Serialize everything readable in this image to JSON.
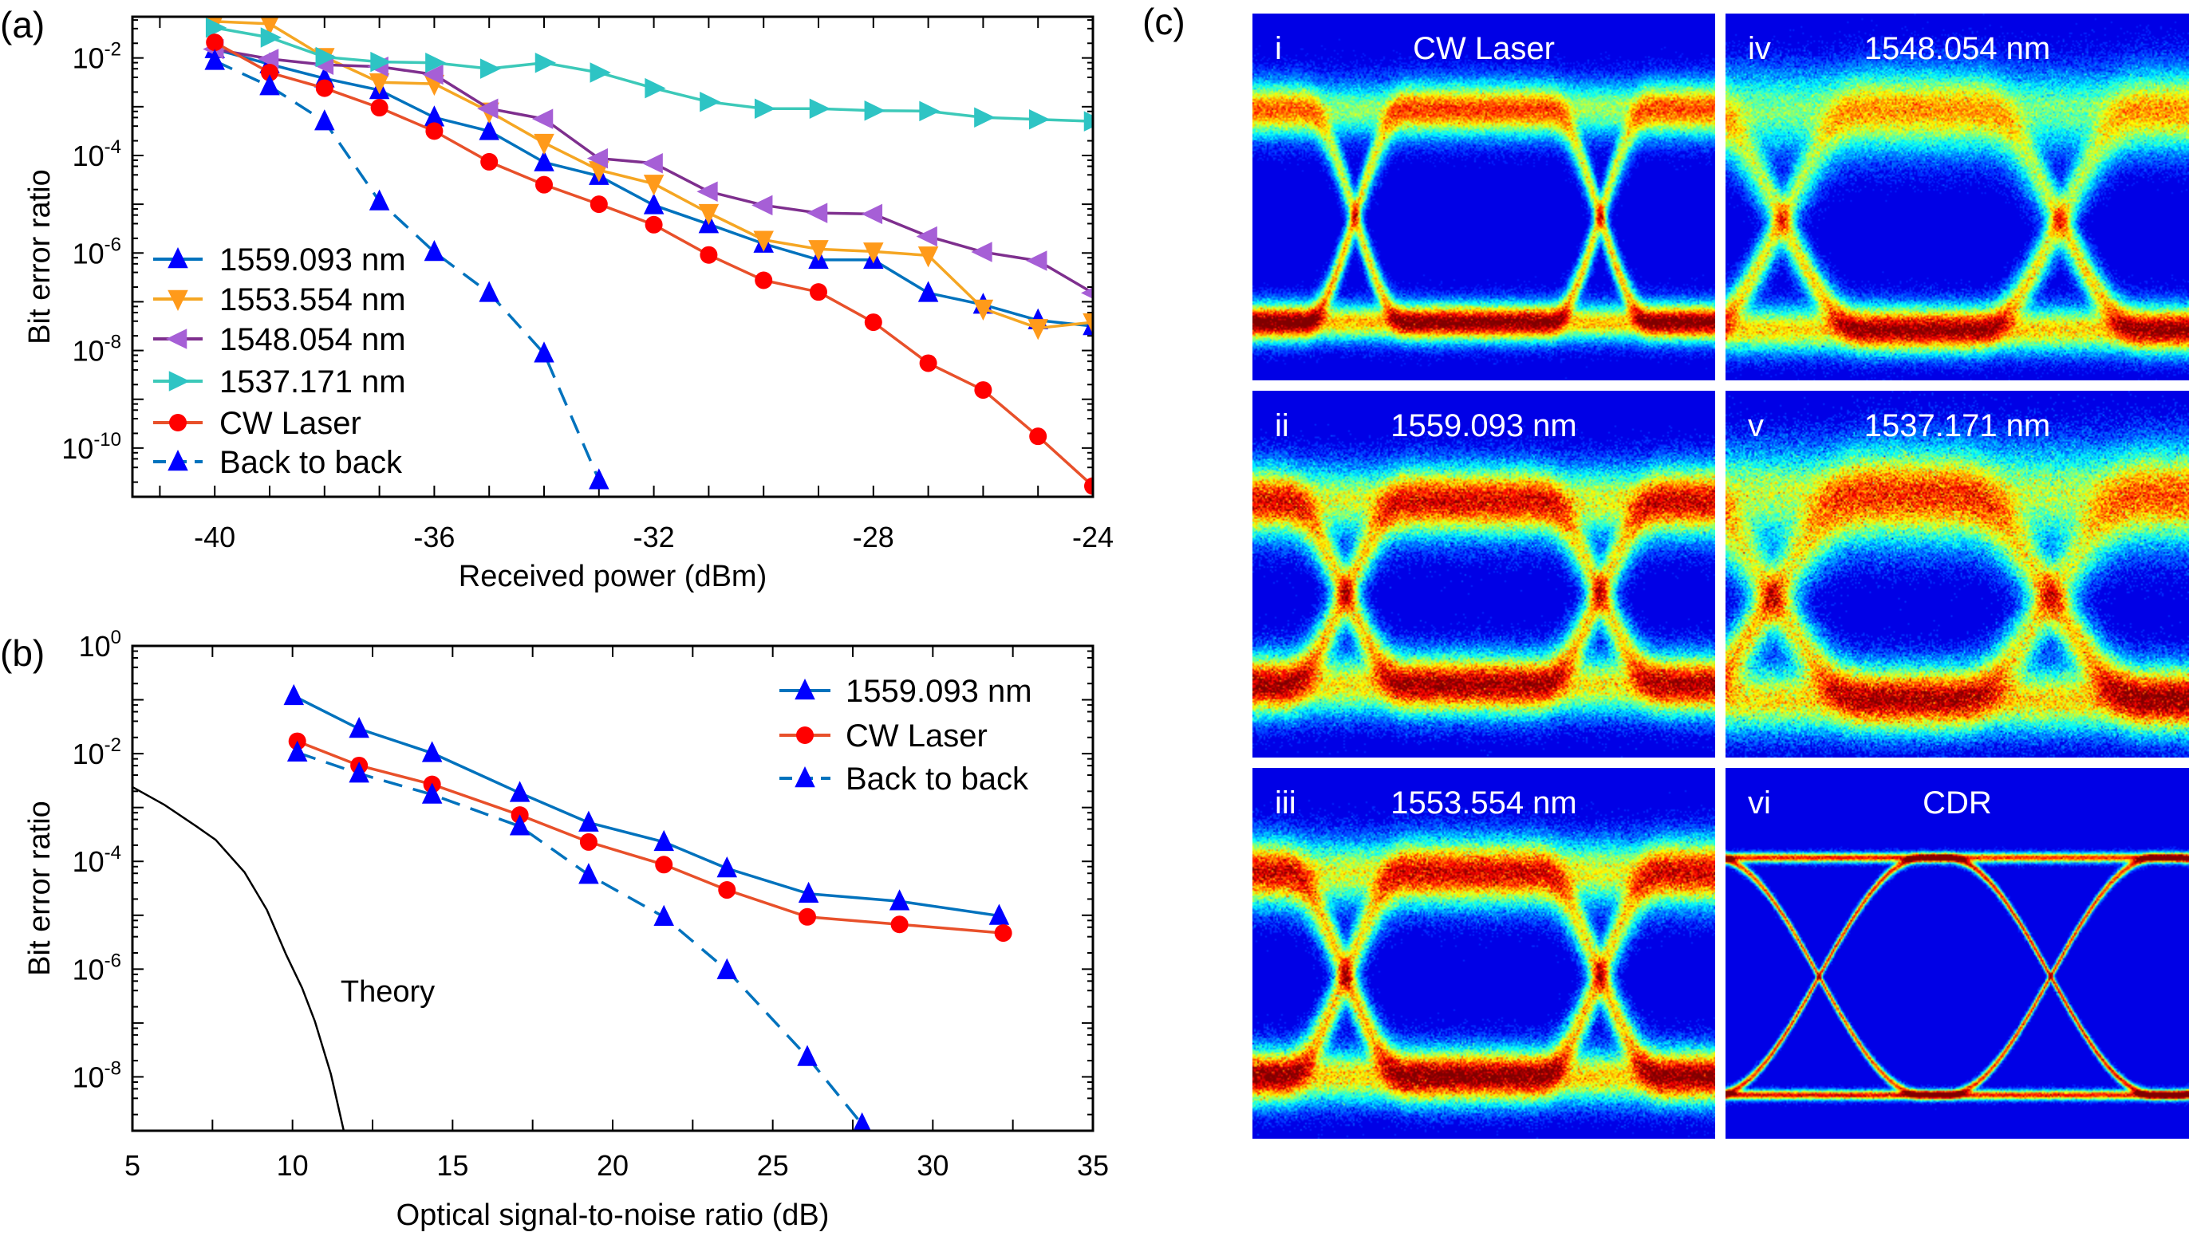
{
  "panel_labels": {
    "a": "(a)",
    "b": "(b)",
    "c": "(c)"
  },
  "chart_data": [
    {
      "id": "a",
      "type": "line",
      "xlabel": "Received power (dBm)",
      "ylabel": "Bit error ratio",
      "xscale": "linear",
      "yscale": "log",
      "xlim": [
        -41.5,
        -24
      ],
      "ylim": [
        1e-11,
        0.07
      ],
      "x_ticks": [
        -40,
        -36,
        -32,
        -28,
        -24
      ],
      "x_tick_labels": [
        "-40",
        "-36",
        "-32",
        "-28",
        "-24"
      ],
      "y_ticks": [
        0.01,
        0.0001,
        1e-06,
        1e-08,
        1e-10
      ],
      "y_tick_labels": [
        [
          "10",
          "-2"
        ],
        [
          "10",
          "-4"
        ],
        [
          "10",
          "-6"
        ],
        [
          "10",
          "-8"
        ],
        [
          "10",
          "-10"
        ]
      ],
      "grid": false,
      "legend_placement": "bottom-left",
      "series": [
        {
          "name": "1559.093 nm",
          "marker": "triangle-up",
          "line_color": "#0072bd",
          "marker_color": "#0000ff",
          "dash": false,
          "x": [
            -40,
            -39,
            -38,
            -37,
            -36,
            -35,
            -34,
            -33,
            -32,
            -31,
            -30,
            -29,
            -28,
            -27,
            -26,
            -25,
            -24
          ],
          "log10_y": [
            -1.82,
            -2.13,
            -2.42,
            -2.66,
            -3.22,
            -3.5,
            -4.14,
            -4.42,
            -5.02,
            -5.41,
            -5.81,
            -6.14,
            -6.14,
            -6.82,
            -7.06,
            -7.38,
            -7.5
          ]
        },
        {
          "name": "1553.554 nm",
          "marker": "triangle-down",
          "line_color": "#f5a623",
          "marker_color": "#ff9a1a",
          "dash": false,
          "x": [
            -40,
            -39,
            -38,
            -37,
            -36,
            -35,
            -34,
            -33,
            -32,
            -31,
            -30,
            -29,
            -28,
            -27,
            -26,
            -25,
            -24
          ],
          "log10_y": [
            -1.25,
            -1.3,
            -1.98,
            -2.5,
            -2.53,
            -3.1,
            -3.74,
            -4.3,
            -4.58,
            -5.18,
            -5.73,
            -5.92,
            -5.97,
            -6.05,
            -7.14,
            -7.54,
            -7.42
          ]
        },
        {
          "name": "1548.054 nm",
          "marker": "triangle-left",
          "line_color": "#7e2f8e",
          "marker_color": "#a65fd6",
          "dash": false,
          "x": [
            -40,
            -39,
            -38,
            -37,
            -36,
            -35,
            -34,
            -33,
            -32,
            -31,
            -30,
            -29,
            -28,
            -27,
            -26,
            -25,
            -24
          ],
          "log10_y": [
            -1.82,
            -2.02,
            -2.14,
            -2.18,
            -2.34,
            -3.04,
            -3.25,
            -4.06,
            -4.16,
            -4.74,
            -5.02,
            -5.18,
            -5.2,
            -5.66,
            -5.98,
            -6.16,
            -6.82
          ]
        },
        {
          "name": "1537.171 nm",
          "marker": "triangle-right",
          "line_color": "#3cc9b9",
          "marker_color": "#2ec4c4",
          "dash": false,
          "x": [
            -40,
            -39,
            -38,
            -37,
            -36,
            -35,
            -34,
            -33,
            -32,
            -31,
            -30,
            -29,
            -28,
            -27,
            -26,
            -25,
            -24
          ],
          "log10_y": [
            -1.38,
            -1.58,
            -1.98,
            -2.08,
            -2.1,
            -2.22,
            -2.1,
            -2.3,
            -2.62,
            -2.9,
            -3.04,
            -3.04,
            -3.08,
            -3.09,
            -3.22,
            -3.26,
            -3.3
          ]
        },
        {
          "name": "CW Laser",
          "marker": "circle",
          "line_color": "#e8502a",
          "marker_color": "#ff0000",
          "dash": false,
          "x": [
            -40,
            -39,
            -38,
            -37,
            -36,
            -35,
            -34,
            -33,
            -32,
            -31,
            -30,
            -29,
            -28,
            -27,
            -26,
            -25,
            -24
          ],
          "log10_y": [
            -1.68,
            -2.3,
            -2.62,
            -3.02,
            -3.5,
            -4.13,
            -4.6,
            -5.0,
            -5.42,
            -6.04,
            -6.56,
            -6.8,
            -7.42,
            -8.26,
            -8.81,
            -9.76,
            -10.78
          ]
        },
        {
          "name": "Back to back",
          "marker": "triangle-up",
          "line_color": "#0072bd",
          "marker_color": "#0000ff",
          "dash": true,
          "x": [
            -40,
            -39,
            -38,
            -37,
            -36,
            -35,
            -34,
            -33
          ],
          "log10_y": [
            -2.06,
            -2.58,
            -3.3,
            -4.94,
            -5.98,
            -6.82,
            -8.06,
            -10.66
          ]
        }
      ]
    },
    {
      "id": "b",
      "type": "line",
      "xlabel": "Optical signal-to-noise ratio (dB)",
      "ylabel": "Bit error ratio",
      "xscale": "linear",
      "yscale": "log",
      "xlim": [
        5,
        35
      ],
      "ylim": [
        1e-09,
        1
      ],
      "x_ticks": [
        5,
        10,
        15,
        20,
        25,
        30,
        35
      ],
      "x_tick_labels": [
        "5",
        "10",
        "15",
        "20",
        "25",
        "30",
        "35"
      ],
      "y_ticks": [
        1,
        0.01,
        0.0001,
        1e-06,
        1e-08
      ],
      "y_tick_labels": [
        [
          "10",
          "0"
        ],
        [
          "10",
          "-2"
        ],
        [
          "10",
          "-4"
        ],
        [
          "10",
          "-6"
        ],
        [
          "10",
          "-8"
        ]
      ],
      "grid": false,
      "legend_placement": "top-right",
      "annotations": [
        {
          "text": "Theory",
          "x": 11.5,
          "log10_y": -6.6
        }
      ],
      "series": [
        {
          "name": "1559.093 nm",
          "marker": "triangle-up",
          "line_color": "#0072bd",
          "marker_color": "#0000ff",
          "dash": false,
          "in_legend": true,
          "x": [
            10.04,
            12.08,
            14.36,
            17.1,
            19.25,
            21.6,
            23.57,
            26.12,
            28.96,
            32.07
          ],
          "log10_y": [
            -0.93,
            -1.54,
            -1.99,
            -2.73,
            -3.28,
            -3.64,
            -4.13,
            -4.6,
            -4.74,
            -5.01
          ]
        },
        {
          "name": "CW Laser",
          "marker": "circle",
          "line_color": "#e8502a",
          "marker_color": "#ff0000",
          "dash": false,
          "in_legend": true,
          "x": [
            10.15,
            12.08,
            14.36,
            17.1,
            19.25,
            21.6,
            23.57,
            26.08,
            28.96,
            32.2
          ],
          "log10_y": [
            -1.77,
            -2.22,
            -2.57,
            -3.14,
            -3.64,
            -4.06,
            -4.53,
            -5.03,
            -5.17,
            -5.33
          ]
        },
        {
          "name": "Back to back",
          "marker": "triangle-up",
          "line_color": "#0072bd",
          "marker_color": "#0000ff",
          "dash": true,
          "in_legend": true,
          "x": [
            10.15,
            12.08,
            14.36,
            17.1,
            19.25,
            21.6,
            23.57,
            26.08,
            27.79
          ],
          "log10_y": [
            -1.98,
            -2.37,
            -2.76,
            -3.35,
            -4.25,
            -5.03,
            -6.02,
            -7.63,
            -8.88
          ]
        },
        {
          "name": "Theory",
          "marker": "none",
          "line_color": "#000000",
          "marker_color": "#000000",
          "dash": false,
          "in_legend": false,
          "x": [
            5,
            6,
            7,
            7.6,
            8.5,
            9.2,
            9.8,
            10.3,
            10.7,
            11.2,
            11.6
          ],
          "log10_y": [
            -2.62,
            -2.95,
            -3.35,
            -3.6,
            -4.2,
            -4.9,
            -5.73,
            -6.35,
            -6.97,
            -7.95,
            -9.0
          ]
        }
      ]
    }
  ],
  "eye_diagrams": [
    {
      "numeral": "i",
      "title": "CW Laser"
    },
    {
      "numeral": "iv",
      "title": "1548.054 nm"
    },
    {
      "numeral": "ii",
      "title": "1559.093 nm"
    },
    {
      "numeral": "v",
      "title": "1537.171 nm"
    },
    {
      "numeral": "iii",
      "title": "1553.554 nm"
    },
    {
      "numeral": "vi",
      "title": "CDR"
    }
  ]
}
